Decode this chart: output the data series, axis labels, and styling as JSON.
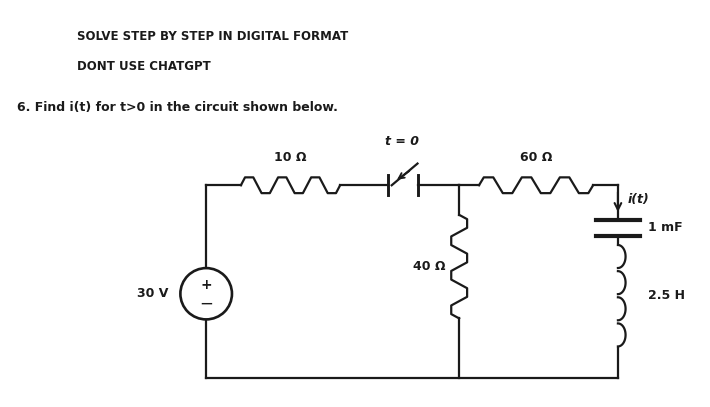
{
  "title1": "SOLVE STEP BY STEP IN DIGITAL FORMAT",
  "title2": "DONT USE CHATGPT",
  "question": "6. Find i(t) for t>0 in the circuit shown below.",
  "bg_color": "#ffffff",
  "line_color": "#1a1a1a",
  "font_color": "#1a1a1a",
  "r1_label": "10 Ω",
  "r2_label": "60 Ω",
  "r3_label": "40 Ω",
  "cap_label": "1 mF",
  "ind_label": "2.5 H",
  "volt_label": "30 V",
  "current_label": "i(t)",
  "t0_label": "t = 0",
  "lw": 1.6
}
